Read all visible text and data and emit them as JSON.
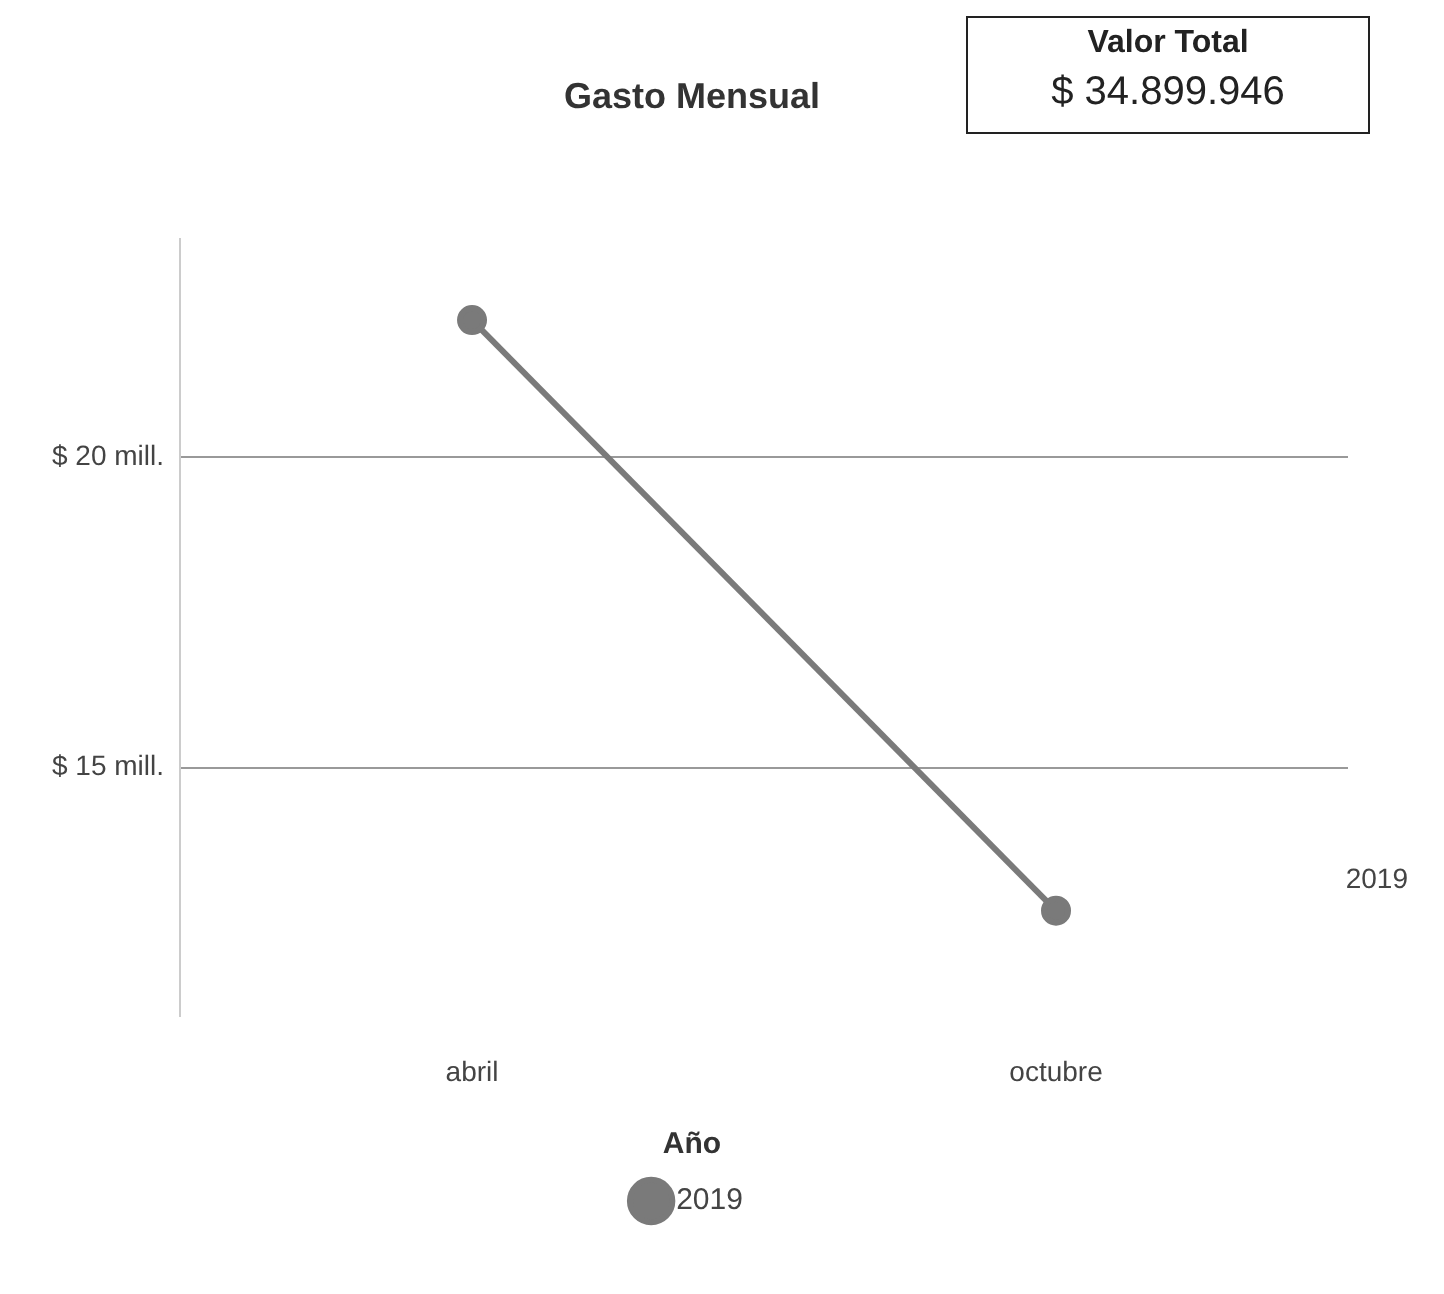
{
  "chart_data": {
    "type": "line",
    "title": "Gasto Mensual",
    "categories": [
      "abril",
      "octubre"
    ],
    "series": [
      {
        "name": "2019",
        "color": "#7a7a7a",
        "values": [
          22.2,
          12.7
        ]
      }
    ],
    "ylim": [
      11,
      23.5
    ],
    "yticks": [
      {
        "value": 15,
        "label": "$ 15 mill."
      },
      {
        "value": 20,
        "label": "$ 20 mill."
      }
    ],
    "grid": "y",
    "legend": "bottom",
    "legend_title": "Año",
    "marker": "circle",
    "line_style": "solid",
    "annotations": [
      "Valor Total",
      "$ 34.899.946"
    ]
  }
}
